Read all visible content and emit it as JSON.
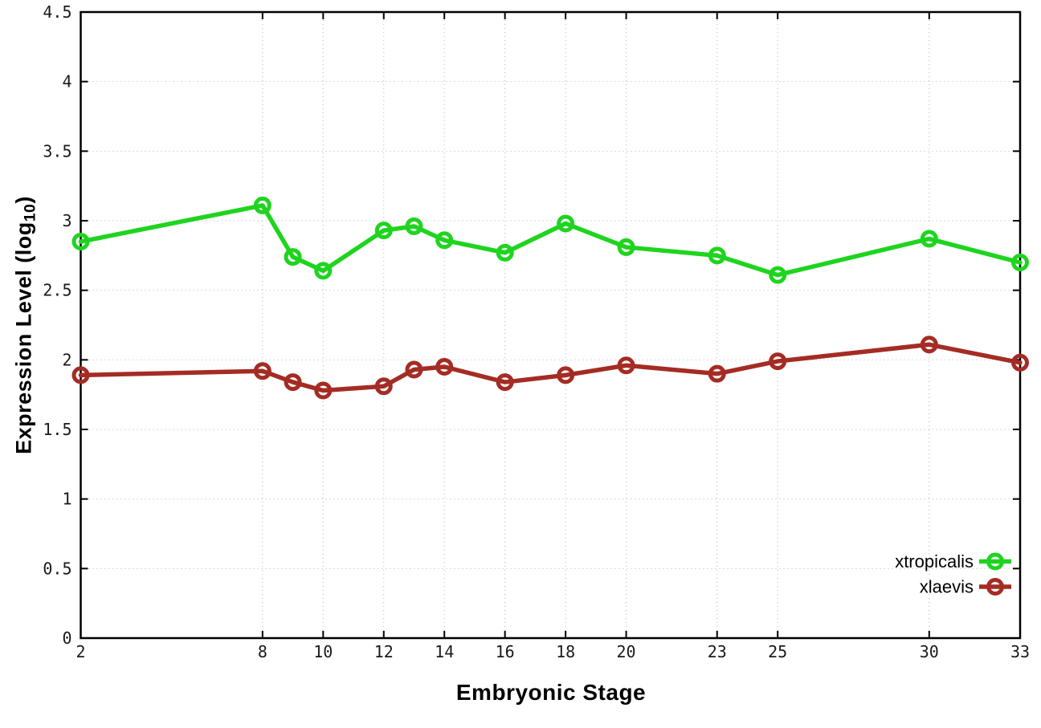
{
  "chart_data": {
    "type": "line",
    "title": "",
    "xlabel": "Embryonic Stage",
    "ylabel": "Expression Level (log10)",
    "ylabel_parts": {
      "prefix": "Expression Level (log",
      "sub": "10",
      "suffix": ")"
    },
    "x": [
      2,
      8,
      9,
      10,
      12,
      13,
      14,
      16,
      18,
      20,
      23,
      25,
      30,
      33
    ],
    "series": [
      {
        "name": "xtropicalis",
        "color": "#1fd41f",
        "values": [
          2.85,
          3.11,
          2.74,
          2.64,
          2.93,
          2.96,
          2.86,
          2.77,
          2.98,
          2.81,
          2.75,
          2.61,
          2.87,
          2.7
        ]
      },
      {
        "name": "xlaevis",
        "color": "#a42c24",
        "values": [
          1.89,
          1.92,
          1.84,
          1.78,
          1.81,
          1.93,
          1.95,
          1.84,
          1.89,
          1.96,
          1.9,
          1.99,
          2.11,
          1.98
        ]
      }
    ],
    "xticks": [
      {
        "value": 2,
        "label": "2"
      },
      {
        "value": 8,
        "label": "8"
      },
      {
        "value": 10,
        "label": "10"
      },
      {
        "value": 12,
        "label": "12"
      },
      {
        "value": 14,
        "label": "14"
      },
      {
        "value": 16,
        "label": "16"
      },
      {
        "value": 18,
        "label": "18"
      },
      {
        "value": 20,
        "label": "20"
      },
      {
        "value": 23,
        "label": "23"
      },
      {
        "value": 25,
        "label": "25"
      },
      {
        "value": 30,
        "label": "30"
      },
      {
        "value": 33,
        "label": "33"
      }
    ],
    "yticks": [
      {
        "value": 0,
        "label": "0"
      },
      {
        "value": 0.5,
        "label": "0.5"
      },
      {
        "value": 1,
        "label": "1"
      },
      {
        "value": 1.5,
        "label": "1.5"
      },
      {
        "value": 2,
        "label": "2"
      },
      {
        "value": 2.5,
        "label": "2.5"
      },
      {
        "value": 3,
        "label": "3"
      },
      {
        "value": 3.5,
        "label": "3.5"
      },
      {
        "value": 4,
        "label": "4"
      },
      {
        "value": 4.5,
        "label": "4.5"
      }
    ],
    "xlim": [
      2,
      33
    ],
    "ylim": [
      0,
      4.5
    ],
    "grid": true,
    "legend_position": "bottom-right",
    "colors": {
      "grid": "#b4b4b4",
      "border": "#000000",
      "tick_text": "#1a1a1a"
    }
  }
}
